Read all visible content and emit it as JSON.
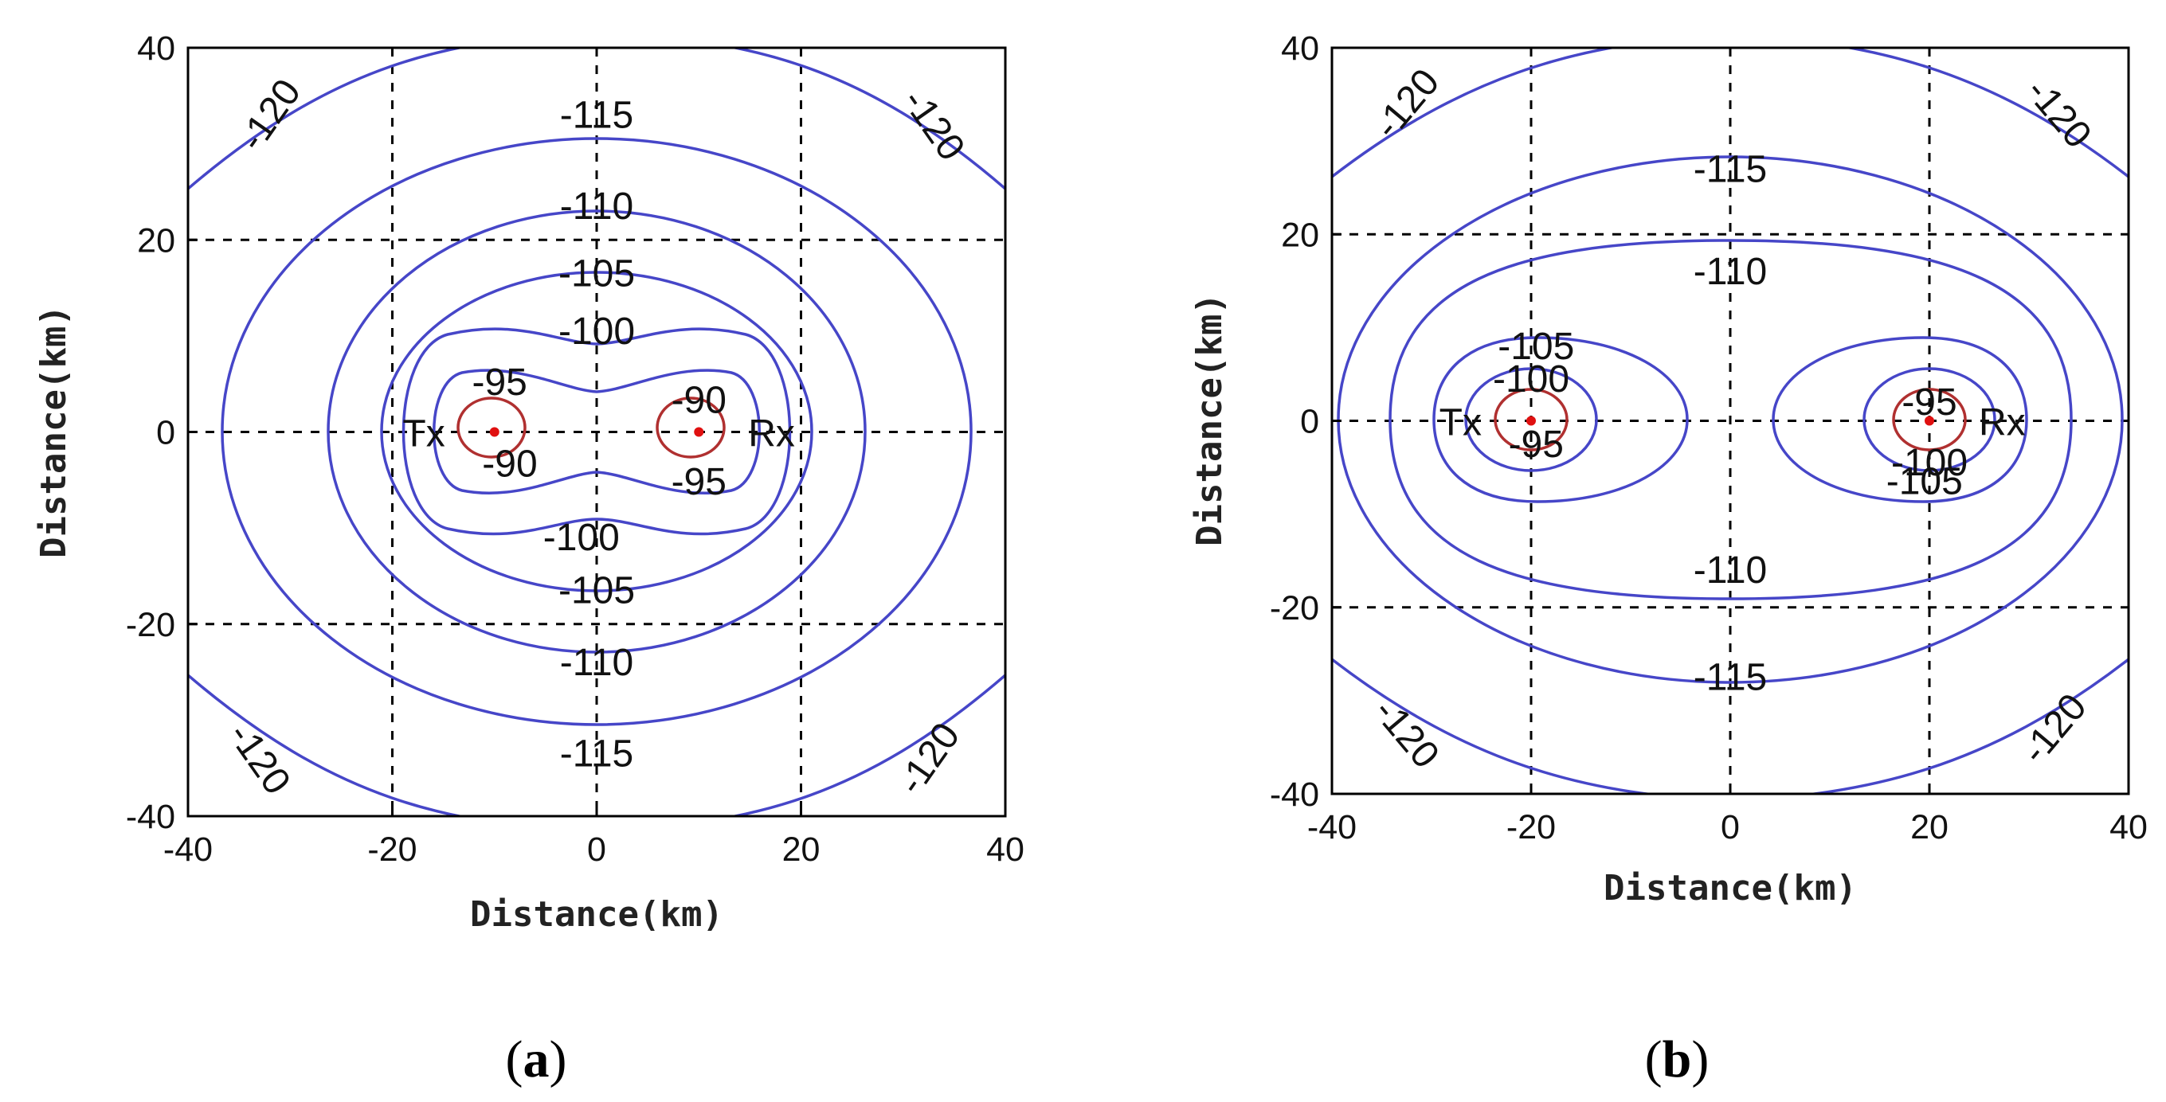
{
  "chart_data": [
    {
      "type": "contour",
      "panel_label": "a",
      "xlabel": "Distance(km)",
      "ylabel": "Distance(km)",
      "xlim": [
        -40,
        40
      ],
      "ylim": [
        -40,
        40
      ],
      "xticks": [
        "-40",
        "-20",
        "0",
        "20",
        "40"
      ],
      "yticks": [
        "40",
        "20",
        "0",
        "-20",
        "-40"
      ],
      "grid": true,
      "tx": {
        "label": "Tx",
        "x": -10,
        "y": 0
      },
      "rx": {
        "label": "Rx",
        "x": 10,
        "y": 0
      },
      "contour_levels": [
        -90,
        -95,
        -100,
        -105,
        -110,
        -115,
        -120
      ],
      "contour_labels": [
        {
          "text": "-115",
          "x": 0,
          "y": 33
        },
        {
          "text": "-110",
          "x": 0,
          "y": 23.5
        },
        {
          "text": "-105",
          "x": 0,
          "y": 16.5
        },
        {
          "text": "-100",
          "x": 0,
          "y": 10.5
        },
        {
          "text": "-95",
          "x": -9.5,
          "y": 5.2
        },
        {
          "text": "-90",
          "x": -8.5,
          "y": -3.3
        },
        {
          "text": "-90",
          "x": 10,
          "y": 3.3
        },
        {
          "text": "-95",
          "x": 10,
          "y": -5.2
        },
        {
          "text": "-100",
          "x": -1.5,
          "y": -11
        },
        {
          "text": "-105",
          "x": 0,
          "y": -16.5
        },
        {
          "text": "-110",
          "x": 0,
          "y": -24
        },
        {
          "text": "-115",
          "x": 0,
          "y": -33.5
        },
        {
          "text": "-120",
          "x": -32,
          "y": 33,
          "rotate": -55
        },
        {
          "text": "-120",
          "x": 33,
          "y": 32,
          "rotate": 55
        },
        {
          "text": "-120",
          "x": -33,
          "y": -34,
          "rotate": 55
        },
        {
          "text": "-120",
          "x": 32.5,
          "y": -34,
          "rotate": -55
        }
      ]
    },
    {
      "type": "contour",
      "panel_label": "b",
      "xlabel": "Distance(km)",
      "ylabel": "Distance(km)",
      "xlim": [
        -40,
        40
      ],
      "ylim": [
        -40,
        40
      ],
      "xticks": [
        "-40",
        "-20",
        "0",
        "20",
        "40"
      ],
      "yticks": [
        "40",
        "20",
        "0",
        "-20",
        "-40"
      ],
      "grid": true,
      "tx": {
        "label": "Tx",
        "x": -20,
        "y": 0
      },
      "rx": {
        "label": "Rx",
        "x": 20,
        "y": 0
      },
      "contour_levels": [
        -95,
        -100,
        -105,
        -110,
        -115,
        -120
      ],
      "contour_labels": [
        {
          "text": "-115",
          "x": 0,
          "y": 27
        },
        {
          "text": "-110",
          "x": 0,
          "y": 16
        },
        {
          "text": "-105",
          "x": -19.5,
          "y": 8
        },
        {
          "text": "-100",
          "x": -20,
          "y": 4.5
        },
        {
          "text": "-95",
          "x": -19.5,
          "y": -2.5
        },
        {
          "text": "-95",
          "x": 20,
          "y": 2
        },
        {
          "text": "-100",
          "x": 20,
          "y": -4.5
        },
        {
          "text": "-105",
          "x": 19.5,
          "y": -6.5
        },
        {
          "text": "-110",
          "x": 0,
          "y": -16
        },
        {
          "text": "-115",
          "x": 0,
          "y": -27.5
        },
        {
          "text": "-120",
          "x": -32.5,
          "y": 34,
          "rotate": -50
        },
        {
          "text": "-120",
          "x": 33,
          "y": 33,
          "rotate": 50
        },
        {
          "text": "-120",
          "x": -32.5,
          "y": -33.5,
          "rotate": 50
        },
        {
          "text": "-120",
          "x": 32.5,
          "y": -33,
          "rotate": -50
        }
      ]
    }
  ],
  "captions": [
    {
      "open": "(",
      "letter": "a",
      "close": ")"
    },
    {
      "open": "(",
      "letter": "b",
      "close": ")"
    }
  ],
  "colors": {
    "contour_blue": "#4646c8",
    "contour_red": "#b03030",
    "marker": "#e01010"
  }
}
